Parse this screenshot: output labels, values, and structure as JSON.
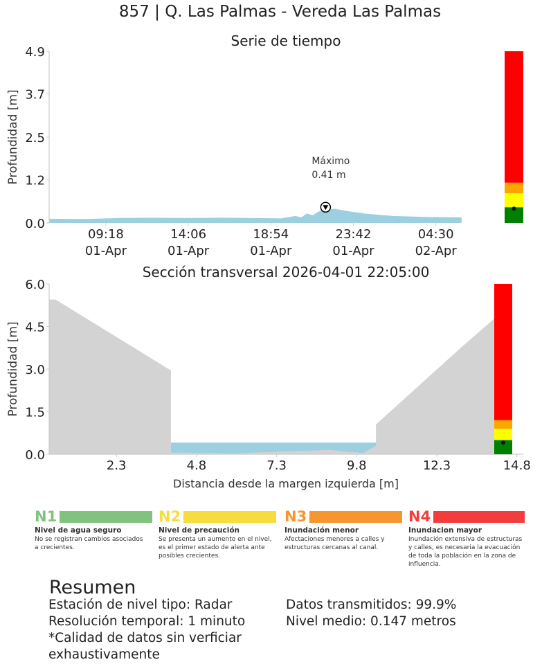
{
  "title": "857 | Q. Las Palmas - Vereda Las Palmas",
  "chart_data": [
    {
      "type": "area",
      "title": "Serie de tiempo",
      "ylabel": "Profundidad [m]",
      "xlabel": "",
      "ylim": [
        0,
        4.9
      ],
      "yticks": [
        "0.0",
        "1.2",
        "2.5",
        "3.7",
        "4.9"
      ],
      "ytick_values": [
        0,
        1.23,
        2.45,
        3.68,
        4.9
      ],
      "xlim": [
        "2026-04-01 06:00",
        "2026-04-02 07:20"
      ],
      "xticks": [
        {
          "t": "2026-04-01 09:18",
          "time": "09:18",
          "date": "01-Apr"
        },
        {
          "t": "2026-04-01 14:06",
          "time": "14:06",
          "date": "01-Apr"
        },
        {
          "t": "2026-04-01 18:54",
          "time": "18:54",
          "date": "01-Apr"
        },
        {
          "t": "2026-04-01 23:42",
          "time": "23:42",
          "date": "01-Apr"
        },
        {
          "t": "2026-04-02 04:30",
          "time": "04:30",
          "date": "02-Apr"
        }
      ],
      "series": [
        {
          "color": "#9ccfe0",
          "points": [
            [
              "2026-04-01 06:00",
              0.12
            ],
            [
              "2026-04-01 08:00",
              0.11
            ],
            [
              "2026-04-01 10:00",
              0.14
            ],
            [
              "2026-04-01 12:00",
              0.15
            ],
            [
              "2026-04-01 14:00",
              0.14
            ],
            [
              "2026-04-01 16:00",
              0.15
            ],
            [
              "2026-04-01 18:00",
              0.14
            ],
            [
              "2026-04-01 19:30",
              0.13
            ],
            [
              "2026-04-01 20:20",
              0.2
            ],
            [
              "2026-04-01 20:40",
              0.16
            ],
            [
              "2026-04-01 21:00",
              0.27
            ],
            [
              "2026-04-01 21:20",
              0.22
            ],
            [
              "2026-04-01 21:40",
              0.32
            ],
            [
              "2026-04-01 22:05",
              0.41
            ],
            [
              "2026-04-01 22:40",
              0.4
            ],
            [
              "2026-04-01 23:20",
              0.34
            ],
            [
              "2026-04-02 00:30",
              0.26
            ],
            [
              "2026-04-02 02:00",
              0.2
            ],
            [
              "2026-04-02 04:00",
              0.17
            ],
            [
              "2026-04-02 06:00",
              0.16
            ]
          ]
        }
      ],
      "annotation": {
        "t": "2026-04-01 22:05",
        "value": 0.41,
        "label": "Máximo",
        "value_label": "0.41 m"
      },
      "level_bar": {
        "levels": [
          {
            "from": 0,
            "to": 0.45,
            "color": "#008000"
          },
          {
            "from": 0.45,
            "to": 0.85,
            "color": "#ffff00"
          },
          {
            "from": 0.85,
            "to": 1.15,
            "color": "#ffa500"
          },
          {
            "from": 1.15,
            "to": 4.9,
            "color": "#ff0000"
          }
        ],
        "current": 0.41
      }
    },
    {
      "type": "area",
      "title": "Sección transversal 2026-04-01 22:05:00",
      "ylabel": "Profundidad [m]",
      "xlabel": "Distancia desde la margen izquierda [m]",
      "ylim": [
        0,
        6.0
      ],
      "yticks": [
        "0.0",
        "1.5",
        "3.0",
        "4.5",
        "6.0"
      ],
      "ytick_values": [
        0,
        1.5,
        3.0,
        4.5,
        6.0
      ],
      "xlim": [
        0.2,
        15.0
      ],
      "xticks": [
        "2.3",
        "4.8",
        "7.3",
        "9.8",
        "12.3",
        "14.8"
      ],
      "xtick_values": [
        2.3,
        4.8,
        7.3,
        9.8,
        12.3,
        14.8
      ],
      "terrain": [
        [
          0.2,
          5.45
        ],
        [
          0.4,
          5.45
        ],
        [
          4.0,
          2.95
        ],
        [
          4.0,
          0.06
        ],
        [
          6.0,
          0.03
        ],
        [
          7.5,
          0.1
        ],
        [
          9.0,
          0.15
        ],
        [
          9.6,
          0.08
        ],
        [
          10.0,
          0.05
        ],
        [
          10.4,
          0.3
        ],
        [
          10.4,
          1.05
        ],
        [
          13.0,
          3.7
        ],
        [
          14.4,
          5.08
        ],
        [
          14.6,
          5.08
        ],
        [
          14.6,
          0
        ]
      ],
      "water_level": 0.41,
      "water_range": [
        4.0,
        10.4
      ],
      "terrain_color": "#d3d3d3",
      "water_color": "#9ccfe0",
      "level_bar": {
        "levels": [
          {
            "from": 0,
            "to": 0.5,
            "color": "#008000"
          },
          {
            "from": 0.5,
            "to": 0.9,
            "color": "#ffff00"
          },
          {
            "from": 0.9,
            "to": 1.2,
            "color": "#ffa500"
          },
          {
            "from": 1.2,
            "to": 6.0,
            "color": "#ff0000"
          }
        ],
        "current": 0.41
      }
    }
  ],
  "legend": [
    {
      "code": "N1",
      "color": "#80c27e",
      "name": "Nivel de agua seguro",
      "desc": "No se registran cambios asociados a crecientes."
    },
    {
      "code": "N2",
      "color": "#f6dc3c",
      "name": "Nivel de precaución",
      "desc": "Se presenta un aumento en el nivel, es el primer estado de alerta ante posibles crecientes."
    },
    {
      "code": "N3",
      "color": "#f5962e",
      "name": "Inundación menor",
      "desc": "Afectaciones menores a calles y estructuras cercanas al canal."
    },
    {
      "code": "N4",
      "color": "#f53c3c",
      "name": "Inundacion mayor",
      "desc": "Inundación extensiva de estructuras y calles, es necesaria la evacuación de toda la población en la zona de influencia."
    }
  ],
  "summary": {
    "title": "Resumen",
    "line1": "Estación de nivel tipo: Radar",
    "line2": "Resolución temporal: 1 minuto",
    "line3": "*Calidad de datos sin verficiar",
    "line4": "exhaustivamente",
    "right1": "Datos transmitidos: 99.9%",
    "right2": "Nivel medio: 0.147 metros"
  }
}
